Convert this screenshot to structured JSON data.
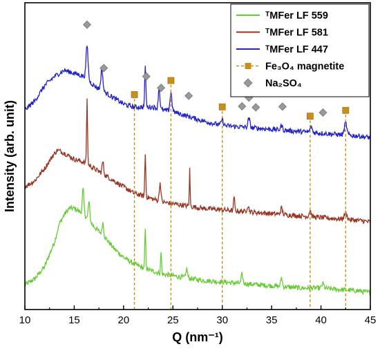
{
  "chart_data": {
    "type": "line",
    "xlabel": "Q (nm⁻¹)",
    "ylabel": "Intensity (arb. unit)",
    "xlim": [
      10,
      45
    ],
    "xticks": [
      10,
      15,
      20,
      25,
      30,
      35,
      40,
      45
    ],
    "y_ticks_shown": false,
    "legend_position": "top-right",
    "series": [
      {
        "name": "ᵀMFer LF 559",
        "color": "#66cc33",
        "baseline": 0.08,
        "points": [
          [
            10,
            0.08
          ],
          [
            11,
            0.1
          ],
          [
            12,
            0.14
          ],
          [
            13,
            0.22
          ],
          [
            13.5,
            0.28
          ],
          [
            14,
            0.31
          ],
          [
            14.5,
            0.33
          ],
          [
            15,
            0.33
          ],
          [
            15.5,
            0.32
          ],
          [
            16,
            0.31
          ],
          [
            17,
            0.27
          ],
          [
            18,
            0.24
          ],
          [
            19,
            0.2
          ],
          [
            20,
            0.17
          ],
          [
            21,
            0.15
          ],
          [
            22,
            0.135
          ],
          [
            23,
            0.125
          ],
          [
            24,
            0.115
          ],
          [
            25,
            0.11
          ],
          [
            26,
            0.105
          ],
          [
            27,
            0.1
          ],
          [
            28,
            0.095
          ],
          [
            30,
            0.09
          ],
          [
            32,
            0.085
          ],
          [
            34,
            0.08
          ],
          [
            36,
            0.075
          ],
          [
            38,
            0.07
          ],
          [
            40,
            0.07
          ],
          [
            42,
            0.065
          ],
          [
            44,
            0.06
          ],
          [
            45,
            0.055
          ]
        ],
        "peaks": [
          [
            15.9,
            0.08,
            0.08
          ],
          [
            16.5,
            0.06,
            0.08
          ],
          [
            17.9,
            0.04,
            0.08
          ],
          [
            22.2,
            0.13,
            0.05
          ],
          [
            23.8,
            0.07,
            0.05
          ],
          [
            26.4,
            0.03,
            0.08
          ],
          [
            32.0,
            0.03,
            0.08
          ],
          [
            36.0,
            0.03,
            0.08
          ],
          [
            40.2,
            0.015,
            0.1
          ]
        ]
      },
      {
        "name": "ᵀMFer LF 581",
        "color": "#993322",
        "baseline": 0.4,
        "points": [
          [
            10,
            0.4
          ],
          [
            11,
            0.42
          ],
          [
            12,
            0.46
          ],
          [
            12.8,
            0.5
          ],
          [
            13.3,
            0.52
          ],
          [
            14,
            0.51
          ],
          [
            15,
            0.49
          ],
          [
            16,
            0.48
          ],
          [
            17,
            0.46
          ],
          [
            18,
            0.44
          ],
          [
            19,
            0.42
          ],
          [
            20,
            0.4
          ],
          [
            21,
            0.38
          ],
          [
            22,
            0.37
          ],
          [
            23,
            0.36
          ],
          [
            24,
            0.35
          ],
          [
            25,
            0.345
          ],
          [
            26,
            0.34
          ],
          [
            27,
            0.335
          ],
          [
            28,
            0.33
          ],
          [
            30,
            0.325
          ],
          [
            32,
            0.32
          ],
          [
            34,
            0.315
          ],
          [
            36,
            0.31
          ],
          [
            38,
            0.305
          ],
          [
            40,
            0.3
          ],
          [
            42,
            0.295
          ],
          [
            44,
            0.29
          ],
          [
            45,
            0.285
          ]
        ],
        "peaks": [
          [
            16.3,
            0.21,
            0.05
          ],
          [
            17.9,
            0.04,
            0.08
          ],
          [
            22.2,
            0.14,
            0.05
          ],
          [
            23.7,
            0.06,
            0.08
          ],
          [
            26.7,
            0.12,
            0.04
          ],
          [
            31.2,
            0.05,
            0.05
          ],
          [
            32.6,
            0.02,
            0.1
          ],
          [
            36.0,
            0.02,
            0.1
          ],
          [
            38.9,
            0.02,
            0.1
          ],
          [
            42.5,
            0.02,
            0.15
          ]
        ]
      },
      {
        "name": "ᵀMFer LF 447",
        "color": "#2222cc",
        "baseline": 0.65,
        "points": [
          [
            10,
            0.65
          ],
          [
            11,
            0.68
          ],
          [
            12,
            0.73
          ],
          [
            13,
            0.76
          ],
          [
            14,
            0.78
          ],
          [
            15,
            0.77
          ],
          [
            16,
            0.76
          ],
          [
            17,
            0.73
          ],
          [
            18,
            0.71
          ],
          [
            19,
            0.69
          ],
          [
            20,
            0.67
          ],
          [
            21,
            0.66
          ],
          [
            22,
            0.66
          ],
          [
            23,
            0.66
          ],
          [
            24,
            0.65
          ],
          [
            25,
            0.645
          ],
          [
            26,
            0.635
          ],
          [
            27,
            0.625
          ],
          [
            28,
            0.615
          ],
          [
            30,
            0.6
          ],
          [
            32,
            0.595
          ],
          [
            34,
            0.59
          ],
          [
            36,
            0.585
          ],
          [
            38,
            0.58
          ],
          [
            40,
            0.575
          ],
          [
            42,
            0.57
          ],
          [
            44,
            0.565
          ],
          [
            45,
            0.56
          ]
        ],
        "peaks": [
          [
            16.3,
            0.11,
            0.1
          ],
          [
            17.8,
            0.07,
            0.1
          ],
          [
            22.2,
            0.13,
            0.06
          ],
          [
            23.6,
            0.07,
            0.08
          ],
          [
            24.8,
            0.06,
            0.1
          ],
          [
            30.0,
            0.02,
            0.1
          ],
          [
            32.7,
            0.03,
            0.1
          ],
          [
            36.0,
            0.015,
            0.1
          ],
          [
            39.0,
            0.02,
            0.1
          ],
          [
            42.5,
            0.04,
            0.12
          ]
        ]
      }
    ],
    "reference_markers": [
      {
        "name": "Fe₃O₄ magnetite",
        "color": "#c8901a",
        "marker": "square",
        "dropline": true,
        "positions": [
          21.1,
          24.8,
          30.0,
          38.9,
          42.5
        ]
      },
      {
        "name": "Na₂SO₄",
        "color": "#999999",
        "marker": "diamond",
        "dropline": false,
        "positions": [
          16.3,
          18.0,
          22.3,
          23.8,
          26.6,
          32.0,
          32.7,
          33.4,
          36.1,
          40.2
        ]
      }
    ]
  }
}
